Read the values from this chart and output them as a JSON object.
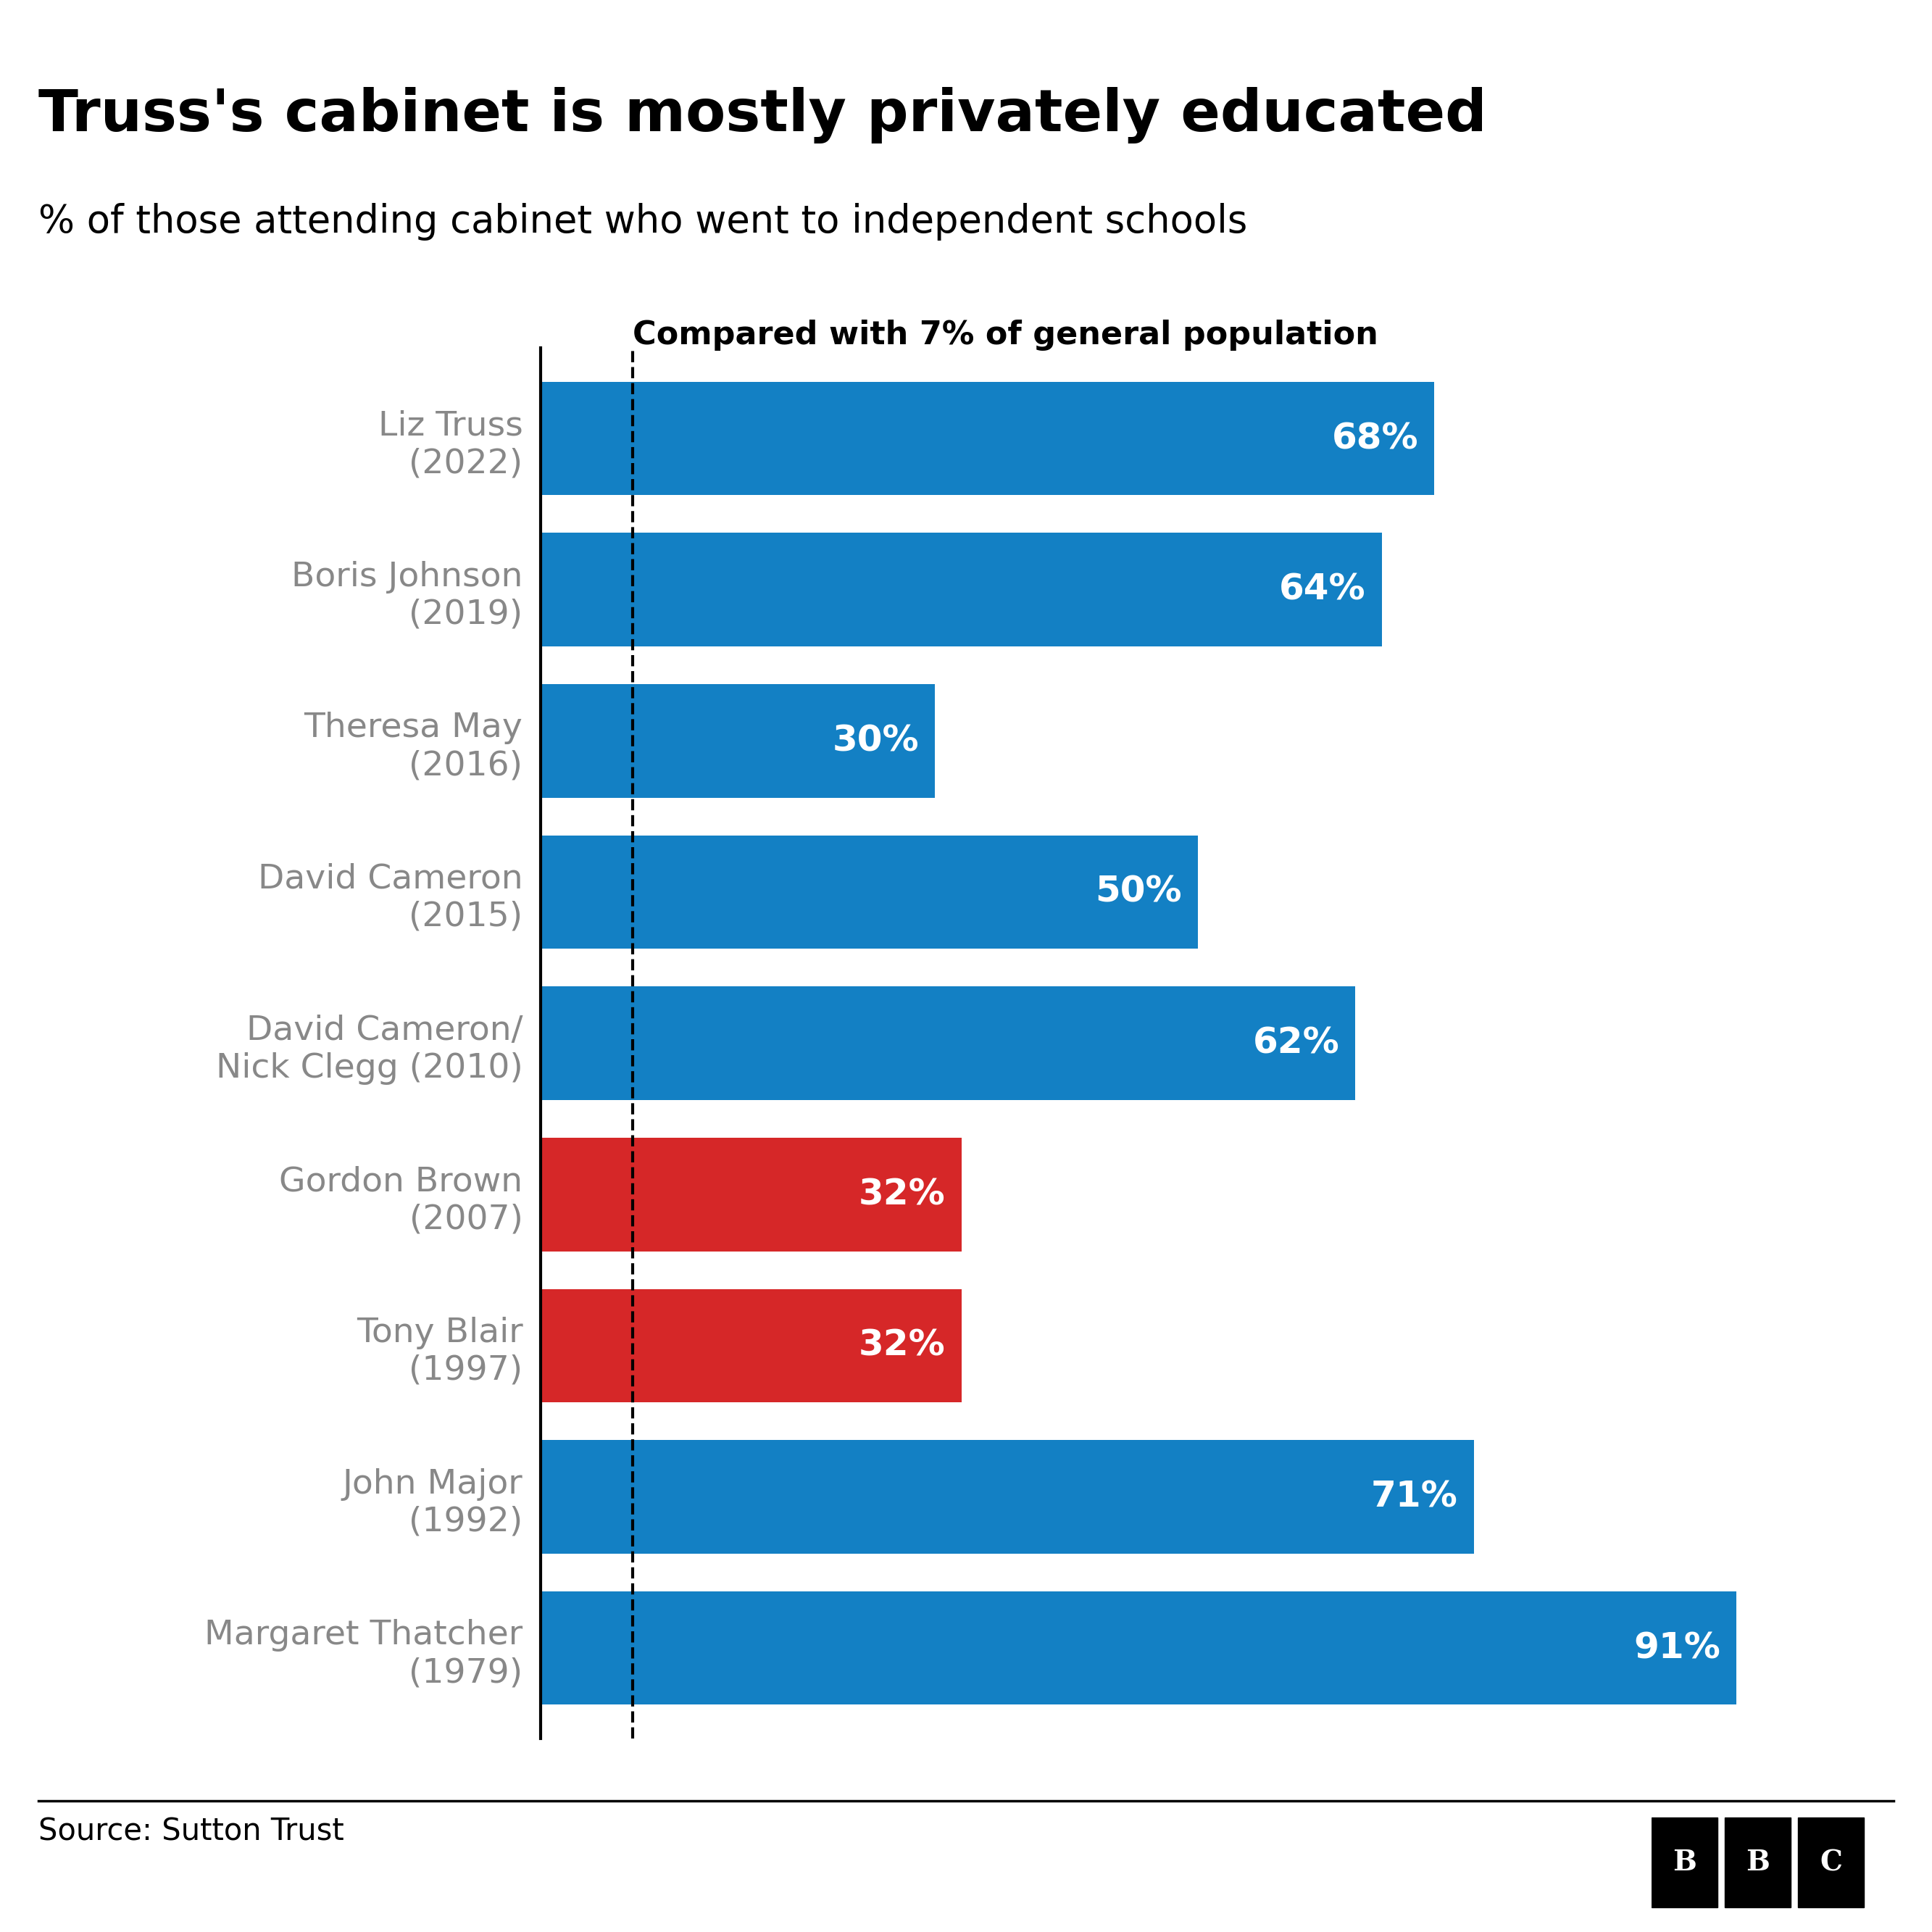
{
  "title": "Truss's cabinet is mostly privately educated",
  "subtitle": "% of those attending cabinet who went to independent schools",
  "annotation": "Compared with 7% of general population",
  "source": "Source: Sutton Trust",
  "categories": [
    "Liz Truss\n(2022)",
    "Boris Johnson\n(2019)",
    "Theresa May\n(2016)",
    "David Cameron\n(2015)",
    "David Cameron/\nNick Clegg (2010)",
    "Gordon Brown\n(2007)",
    "Tony Blair\n(1997)",
    "John Major\n(1992)",
    "Margaret Thatcher\n(1979)"
  ],
  "values": [
    68,
    64,
    30,
    50,
    62,
    32,
    32,
    71,
    91
  ],
  "bar_colors": [
    "#1380c4",
    "#1380c4",
    "#1380c4",
    "#1380c4",
    "#1380c4",
    "#d62728",
    "#d62728",
    "#1380c4",
    "#1380c4"
  ],
  "value_labels": [
    "68%",
    "64%",
    "30%",
    "50%",
    "62%",
    "32%",
    "32%",
    "71%",
    "91%"
  ],
  "dashed_line_x": 7,
  "xlim": [
    0,
    100
  ],
  "background_color": "#ffffff",
  "title_fontsize": 58,
  "subtitle_fontsize": 38,
  "annotation_fontsize": 32,
  "label_fontsize": 34,
  "value_fontsize": 36,
  "source_fontsize": 30,
  "ylabel_color": "#888888",
  "bar_height": 0.75
}
